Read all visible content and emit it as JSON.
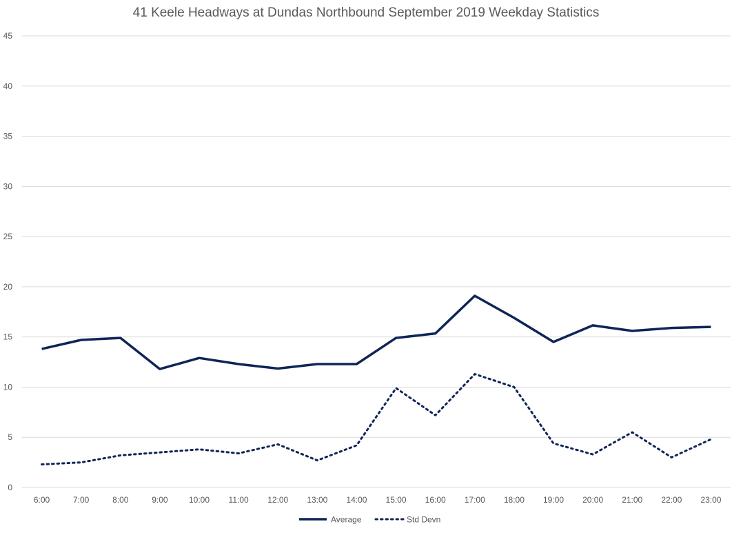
{
  "chart_data": {
    "type": "line",
    "title": "41 Keele Headways at Dundas Northbound September 2019 Weekday Statistics",
    "xlabel": "",
    "ylabel": "",
    "categories": [
      "6:00",
      "7:00",
      "8:00",
      "9:00",
      "10:00",
      "11:00",
      "12:00",
      "13:00",
      "14:00",
      "15:00",
      "16:00",
      "17:00",
      "18:00",
      "19:00",
      "20:00",
      "21:00",
      "22:00",
      "23:00"
    ],
    "yticks": [
      "0",
      "5",
      "10",
      "15",
      "20",
      "25",
      "30",
      "35",
      "40",
      "45"
    ],
    "ylim": [
      0,
      45
    ],
    "grid": true,
    "legend_position": "bottom",
    "series": [
      {
        "name": "Average",
        "line_style": "solid",
        "color": "#0f2556",
        "values": [
          13.8,
          14.7,
          14.9,
          11.8,
          12.9,
          12.3,
          11.85,
          12.3,
          12.3,
          14.9,
          15.35,
          19.1,
          16.9,
          14.5,
          16.15,
          15.6,
          15.9,
          16.0
        ]
      },
      {
        "name": "Std Devn",
        "line_style": "dotted",
        "color": "#0f2556",
        "values": [
          2.3,
          2.5,
          3.2,
          3.5,
          3.8,
          3.4,
          4.3,
          2.7,
          4.2,
          9.9,
          7.2,
          11.3,
          10.0,
          4.4,
          3.3,
          5.5,
          3.0,
          4.8
        ]
      }
    ]
  }
}
